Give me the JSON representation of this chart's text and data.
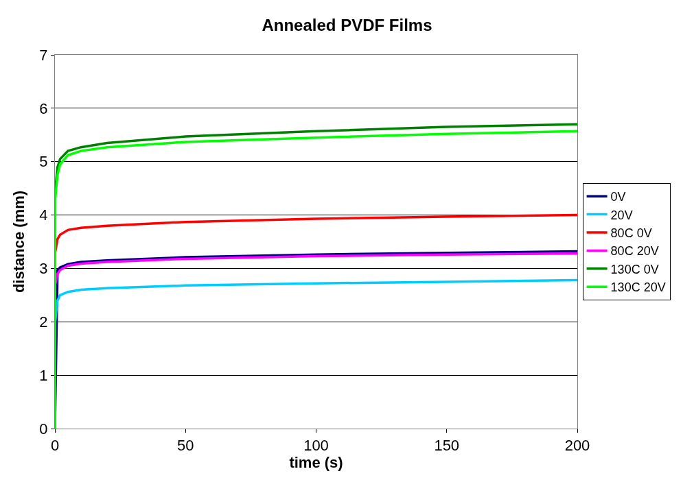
{
  "chart_data": {
    "type": "line",
    "title": "Annealed PVDF Films",
    "xlabel": "time (s)",
    "ylabel": "distance (mm)",
    "x": [
      0,
      0.1,
      1,
      2,
      5,
      10,
      20,
      50,
      100,
      150,
      200
    ],
    "series": [
      {
        "name": "0V",
        "color": "#000080",
        "x": [
          0,
          1,
          2,
          5,
          10,
          20,
          50,
          100,
          150,
          200
        ],
        "values": [
          0,
          2.97,
          3.02,
          3.08,
          3.12,
          3.15,
          3.21,
          3.26,
          3.29,
          3.32
        ]
      },
      {
        "name": "20V",
        "color": "#00ccff",
        "values": [
          0,
          2.0,
          2.4,
          2.5,
          2.56,
          2.6,
          2.63,
          2.68,
          2.72,
          2.75,
          2.78
        ]
      },
      {
        "name": "80C 0V",
        "color": "#ff0000",
        "values": [
          0,
          3.3,
          3.55,
          3.63,
          3.72,
          3.76,
          3.8,
          3.87,
          3.93,
          3.97,
          4.0
        ]
      },
      {
        "name": "80C 20V",
        "color": "#ff00ff",
        "values": [
          0,
          2.7,
          2.9,
          2.97,
          3.05,
          3.09,
          3.12,
          3.18,
          3.23,
          3.26,
          3.28
        ]
      },
      {
        "name": "130C 0V",
        "color": "#008000",
        "values": [
          0,
          4.45,
          4.9,
          5.05,
          5.2,
          5.27,
          5.35,
          5.47,
          5.57,
          5.65,
          5.7
        ]
      },
      {
        "name": "130C 20V",
        "color": "#00ff00",
        "values": [
          0,
          4.3,
          4.75,
          4.95,
          5.12,
          5.2,
          5.27,
          5.37,
          5.45,
          5.52,
          5.57
        ]
      }
    ],
    "xlim": [
      0,
      200
    ],
    "xticks": [
      0,
      50,
      100,
      150,
      200
    ],
    "ylim": [
      0,
      7
    ],
    "yticks": [
      0,
      1,
      2,
      3,
      4,
      5,
      6,
      7
    ],
    "grid": "y",
    "legend": "right",
    "marker": "none",
    "line_style": "solid"
  }
}
